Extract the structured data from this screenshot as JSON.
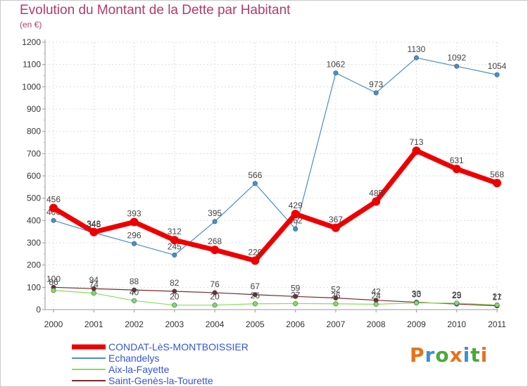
{
  "title": "Evolution du Montant de la Dette par Habitant",
  "unit": "(en €)",
  "logo": {
    "text": "Proxiti",
    "colors": [
      "#e8711a",
      "#3a8fd6",
      "#4aa83a",
      "#e8711a",
      "#3a8fd6",
      "#4aa83a",
      "#e8711a"
    ]
  },
  "chart_data": {
    "type": "line",
    "title": "Evolution du Montant de la Dette par Habitant",
    "ylabel": "(en €)",
    "xlabel": "",
    "x": [
      "2000",
      "2001",
      "2002",
      "2003",
      "2004",
      "2005",
      "2006",
      "2007",
      "2008",
      "2009",
      "2010",
      "2011"
    ],
    "ylim": [
      0,
      1200
    ],
    "yticks": [
      "0",
      "100",
      "200",
      "300",
      "400",
      "500",
      "600",
      "700",
      "800",
      "900",
      "1000",
      "1100",
      "1200"
    ],
    "grid": true,
    "legend": "bottom-left",
    "series": [
      {
        "name": "CONDAT-LèS-MONTBOISSIER",
        "color": "#ee0000",
        "values": [
          456,
          348,
          393,
          312,
          268,
          220,
          429,
          367,
          485,
          713,
          631,
          568
        ]
      },
      {
        "name": "Echandelys",
        "color": "#4a8fc8",
        "values": [
          400,
          345,
          296,
          245,
          395,
          566,
          362,
          1062,
          973,
          1130,
          1092,
          1054
        ]
      },
      {
        "name": "Aix-la-Fayette",
        "color": "#88dd55",
        "values": [
          86,
          74,
          40,
          20,
          20,
          26,
          27,
          26,
          24,
          30,
          29,
          21
        ]
      },
      {
        "name": "Saint-Genès-la-Tourette",
        "color": "#7a2a2a",
        "values": [
          100,
          94,
          88,
          82,
          76,
          67,
          59,
          52,
          42,
          33,
          25,
          17
        ]
      }
    ]
  }
}
